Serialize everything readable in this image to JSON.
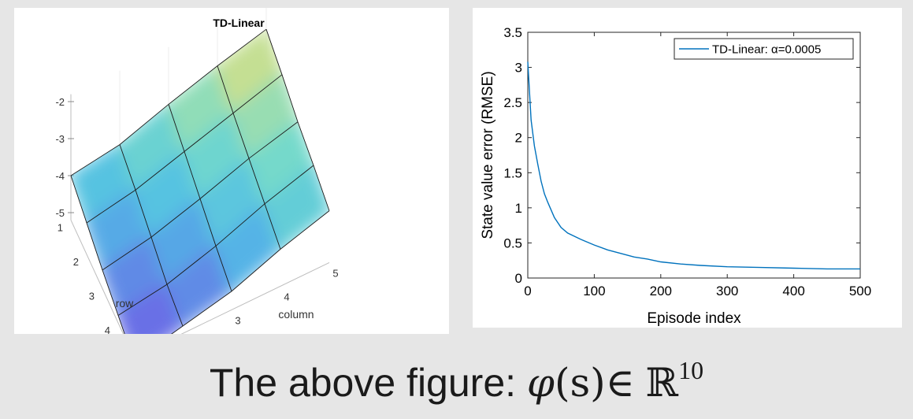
{
  "caption": {
    "text": "The above figure: ",
    "phi": "φ",
    "arg": "(s)",
    "in": "∈",
    "field": "ℝ",
    "power": "10"
  },
  "chart_data": [
    {
      "type": "surface",
      "title": "TD-Linear",
      "xlabel": "column",
      "ylabel": "row",
      "x_ticks": [
        "1",
        "2",
        "3",
        "4",
        "5"
      ],
      "y_ticks": [
        "1",
        "2",
        "3",
        "4",
        "5"
      ],
      "z_ticks": [
        "-2",
        "-3",
        "-4",
        "-5"
      ],
      "zlim": [
        -5.2,
        -1.8
      ],
      "colormap": "parula",
      "z_values": [
        [
          -4.0,
          -3.8,
          -3.35,
          -2.95,
          -2.6
        ],
        [
          -4.35,
          -4.1,
          -3.7,
          -3.3,
          -2.9
        ],
        [
          -4.7,
          -4.45,
          -4.05,
          -3.6,
          -3.25
        ],
        [
          -5.0,
          -4.8,
          -4.4,
          -3.9,
          -3.5
        ],
        [
          -5.3,
          -5.0,
          -4.7,
          -4.2,
          -3.8
        ]
      ]
    },
    {
      "type": "line",
      "title": "",
      "xlabel": "Episode index",
      "ylabel": "State value error (RMSE)",
      "xlim": [
        0,
        500
      ],
      "ylim": [
        0,
        3.5
      ],
      "x_ticks": [
        "0",
        "100",
        "200",
        "300",
        "400",
        "500"
      ],
      "y_ticks": [
        "0",
        "0.5",
        "1",
        "1.5",
        "2",
        "2.5",
        "3",
        "3.5"
      ],
      "legend_position": "top-right",
      "series": [
        {
          "name": "TD-Linear: α=0.0005",
          "color": "#0072bd",
          "x": [
            0,
            5,
            10,
            15,
            20,
            25,
            30,
            40,
            50,
            60,
            80,
            100,
            120,
            140,
            160,
            180,
            200,
            230,
            260,
            300,
            350,
            400,
            450,
            500
          ],
          "y": [
            3.08,
            2.25,
            1.88,
            1.62,
            1.38,
            1.2,
            1.08,
            0.86,
            0.72,
            0.64,
            0.55,
            0.47,
            0.4,
            0.35,
            0.3,
            0.27,
            0.23,
            0.2,
            0.18,
            0.16,
            0.15,
            0.14,
            0.13,
            0.13
          ]
        }
      ]
    }
  ]
}
